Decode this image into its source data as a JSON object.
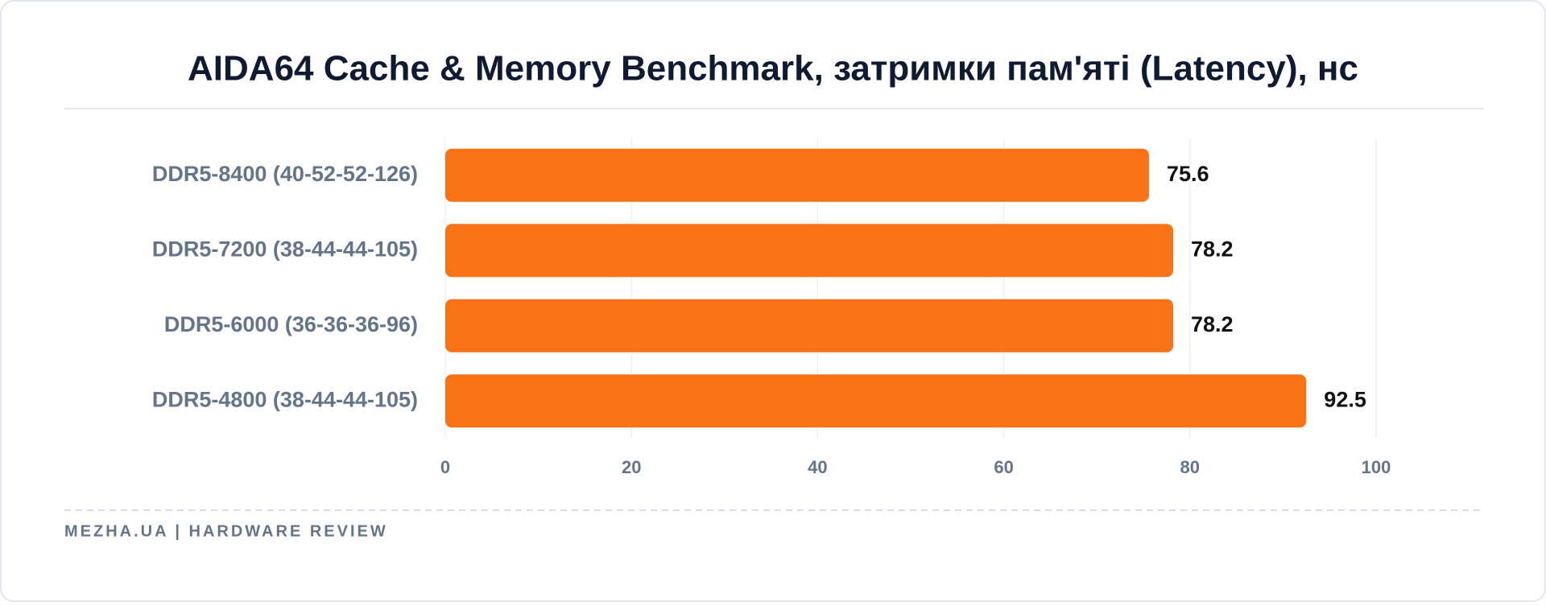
{
  "chart_data": {
    "type": "bar",
    "orientation": "horizontal",
    "title": "AIDA64 Cache & Memory Benchmark, затримки пам'яті (Latency), нс",
    "categories": [
      "DDR5-8400 (40-52-52-126)",
      "DDR5-7200 (38-44-44-105)",
      "DDR5-6000 (36-36-36-96)",
      "DDR5-4800 (38-44-44-105)"
    ],
    "values": [
      75.6,
      78.2,
      78.2,
      92.5
    ],
    "color": "#f97316",
    "xlim": [
      0,
      100
    ],
    "xticks": [
      0,
      20,
      40,
      60,
      80,
      100
    ],
    "grid": true,
    "source": "MEZHA.UA | HARDWARE REVIEW"
  }
}
